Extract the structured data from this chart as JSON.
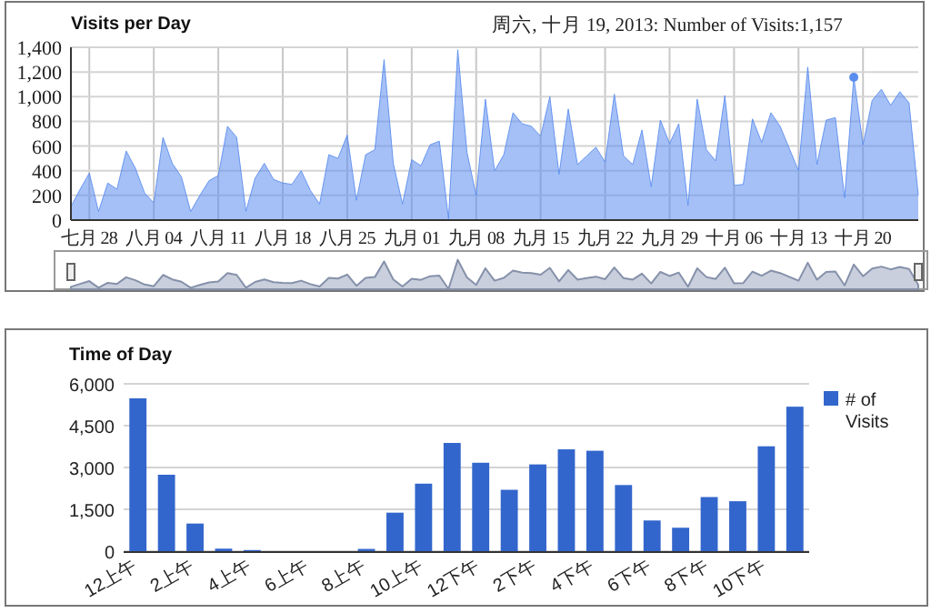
{
  "chart_data": [
    {
      "type": "area",
      "title": "Visits per Day",
      "annotations": [
        {
          "text": "周六, 十月 19, 2013: Number of Visits:1,157",
          "x": "2013-10-19",
          "y": 1157
        }
      ],
      "x": [
        "2013-07-26",
        "2013-07-27",
        "2013-07-28",
        "2013-07-29",
        "2013-07-30",
        "2013-07-31",
        "2013-08-01",
        "2013-08-02",
        "2013-08-03",
        "2013-08-04",
        "2013-08-05",
        "2013-08-06",
        "2013-08-07",
        "2013-08-08",
        "2013-08-09",
        "2013-08-10",
        "2013-08-11",
        "2013-08-12",
        "2013-08-13",
        "2013-08-14",
        "2013-08-15",
        "2013-08-16",
        "2013-08-17",
        "2013-08-18",
        "2013-08-19",
        "2013-08-20",
        "2013-08-21",
        "2013-08-22",
        "2013-08-23",
        "2013-08-24",
        "2013-08-25",
        "2013-08-26",
        "2013-08-27",
        "2013-08-28",
        "2013-08-29",
        "2013-08-30",
        "2013-08-31",
        "2013-09-01",
        "2013-09-02",
        "2013-09-03",
        "2013-09-04",
        "2013-09-05",
        "2013-09-06",
        "2013-09-07",
        "2013-09-08",
        "2013-09-09",
        "2013-09-10",
        "2013-09-11",
        "2013-09-12",
        "2013-09-13",
        "2013-09-14",
        "2013-09-15",
        "2013-09-16",
        "2013-09-17",
        "2013-09-18",
        "2013-09-19",
        "2013-09-20",
        "2013-09-21",
        "2013-09-22",
        "2013-09-23",
        "2013-09-24",
        "2013-09-25",
        "2013-09-26",
        "2013-09-27",
        "2013-09-28",
        "2013-09-29",
        "2013-09-30",
        "2013-10-01",
        "2013-10-02",
        "2013-10-03",
        "2013-10-04",
        "2013-10-05",
        "2013-10-06",
        "2013-10-07",
        "2013-10-08",
        "2013-10-09",
        "2013-10-10",
        "2013-10-11",
        "2013-10-12",
        "2013-10-13",
        "2013-10-14",
        "2013-10-15",
        "2013-10-16",
        "2013-10-17",
        "2013-10-18",
        "2013-10-19",
        "2013-10-20",
        "2013-10-21",
        "2013-10-22",
        "2013-10-23",
        "2013-10-24",
        "2013-10-25",
        "2013-10-26"
      ],
      "series": [
        {
          "color": "#5b8def",
          "values": [
            110,
            250,
            380,
            70,
            300,
            250,
            560,
            420,
            220,
            140,
            670,
            460,
            350,
            70,
            200,
            320,
            360,
            760,
            670,
            70,
            340,
            460,
            330,
            300,
            290,
            400,
            240,
            130,
            530,
            500,
            690,
            160,
            530,
            570,
            1300,
            460,
            130,
            490,
            440,
            610,
            640,
            10,
            1380,
            550,
            200,
            980,
            400,
            530,
            870,
            780,
            760,
            680,
            1000,
            370,
            900,
            450,
            520,
            590,
            470,
            1020,
            520,
            450,
            730,
            270,
            810,
            620,
            780,
            120,
            980,
            570,
            480,
            1010,
            280,
            290,
            820,
            630,
            870,
            760,
            580,
            400,
            1240,
            450,
            810,
            830,
            180,
            1157,
            610,
            970,
            1060,
            930,
            1040,
            950,
            200
          ]
        }
      ],
      "xlim": [
        "2013-07-26",
        "2013-10-26"
      ],
      "xticks": [
        {
          "value": "2013-07-28",
          "label": "七月 28"
        },
        {
          "value": "2013-08-04",
          "label": "八月 04"
        },
        {
          "value": "2013-08-11",
          "label": "八月 11"
        },
        {
          "value": "2013-08-18",
          "label": "八月 18"
        },
        {
          "value": "2013-08-25",
          "label": "八月 25"
        },
        {
          "value": "2013-09-01",
          "label": "九月 01"
        },
        {
          "value": "2013-09-08",
          "label": "九月 08"
        },
        {
          "value": "2013-09-15",
          "label": "九月 15"
        },
        {
          "value": "2013-09-22",
          "label": "九月 22"
        },
        {
          "value": "2013-09-29",
          "label": "九月 29"
        },
        {
          "value": "2013-10-06",
          "label": "十月 06"
        },
        {
          "value": "2013-10-13",
          "label": "十月 13"
        },
        {
          "value": "2013-10-20",
          "label": "十月 20"
        }
      ],
      "ylim": [
        0,
        1400
      ],
      "yticks": [
        0,
        {
          "value": 200,
          "label": "200"
        },
        {
          "value": 400,
          "label": "400"
        },
        {
          "value": 600,
          "label": "600"
        },
        {
          "value": 800,
          "label": "800"
        },
        {
          "value": 1000,
          "label": "1,000"
        },
        {
          "value": 1200,
          "label": "1,200"
        },
        {
          "value": 1400,
          "label": "1,400"
        }
      ],
      "grid": true
    },
    {
      "type": "bar",
      "title": "Time of Day",
      "categories": [
        "12上午",
        null,
        "2上午",
        null,
        "4上午",
        null,
        "6上午",
        null,
        "8上午",
        null,
        "10上午",
        null,
        "12下午",
        null,
        "2下午",
        null,
        "4下午",
        null,
        "6下午",
        null,
        "8下午",
        null,
        "10下午",
        null
      ],
      "series": [
        {
          "name": "# of Visits",
          "color": "#3366cc",
          "values": [
            5480,
            2740,
            990,
            90,
            40,
            0,
            0,
            0,
            80,
            1380,
            2420,
            3880,
            3170,
            2200,
            3110,
            3650,
            3600,
            2370,
            1100,
            840,
            1940,
            1790,
            3760,
            5180
          ]
        }
      ],
      "ylim": [
        0,
        6000
      ],
      "yticks": [
        0,
        {
          "value": 1500,
          "label": "1,500"
        },
        {
          "value": 3000,
          "label": "3,000"
        },
        {
          "value": 4500,
          "label": "4,500"
        },
        {
          "value": 6000,
          "label": "6,000"
        }
      ],
      "grid": "y",
      "legend": "right"
    }
  ]
}
